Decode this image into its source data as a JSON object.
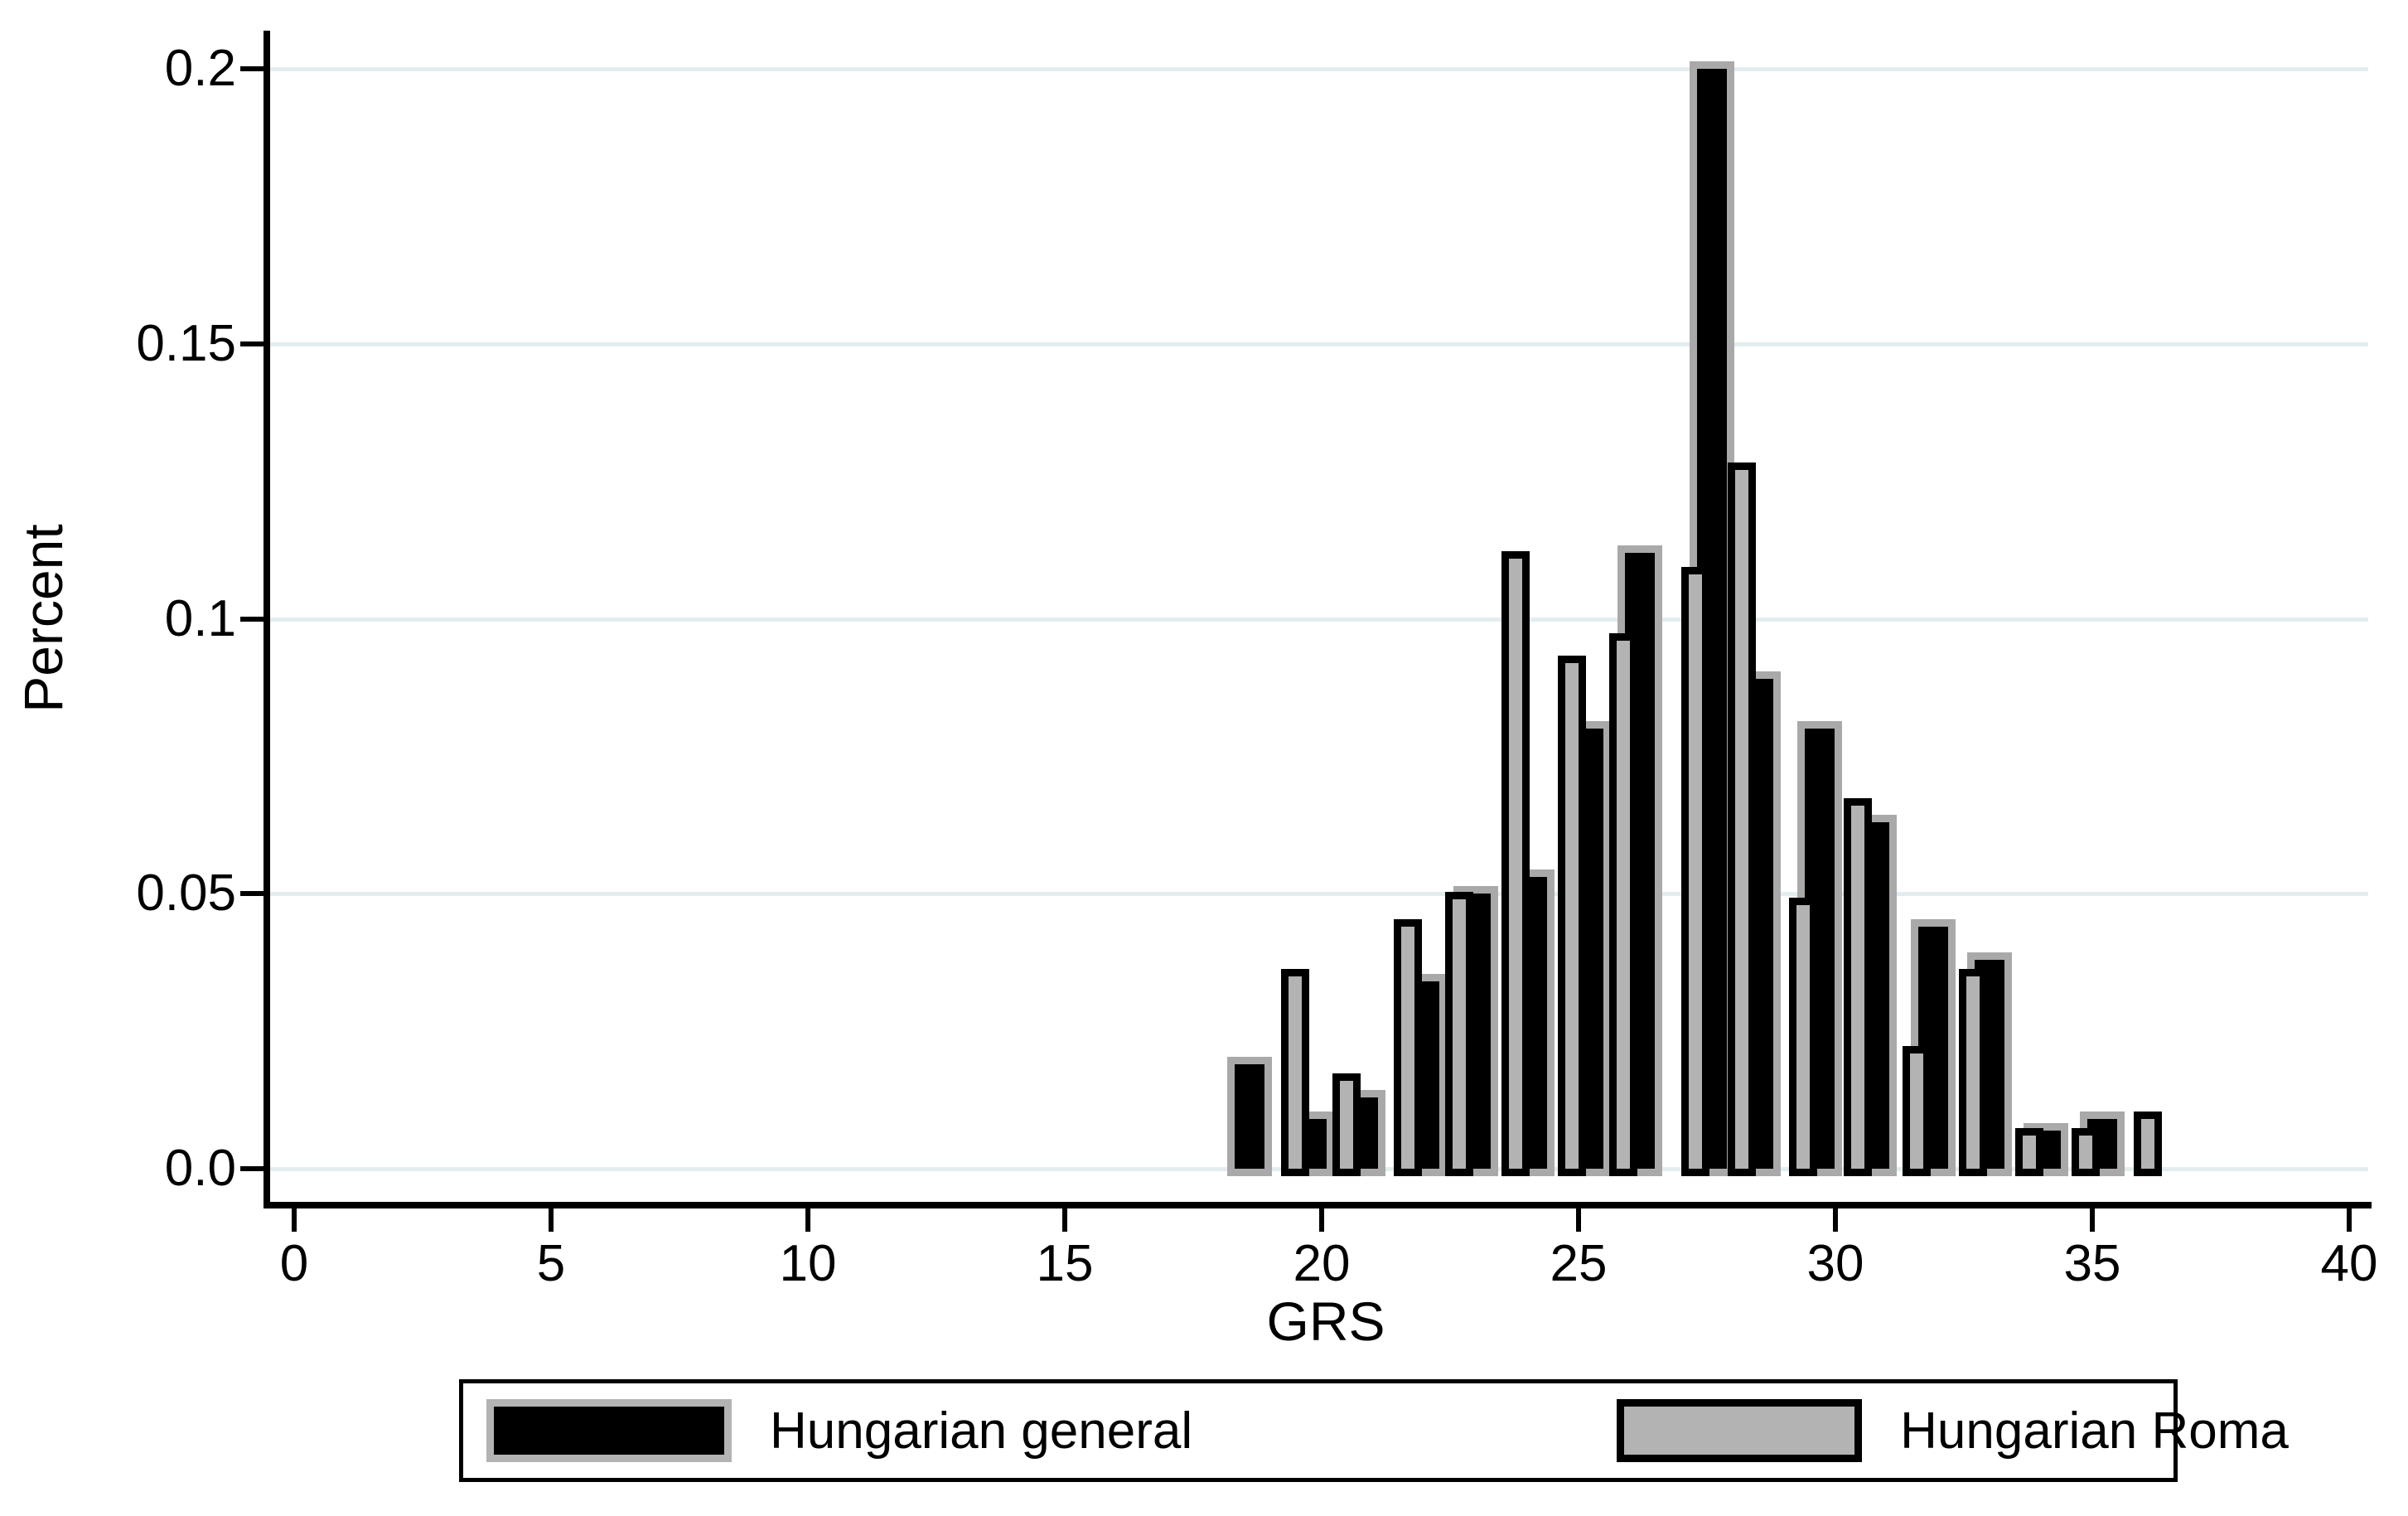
{
  "figure": {
    "background_color": "#ffffff",
    "grid_color": "#e3edef",
    "axis_color": "#000000"
  },
  "chart_data": {
    "type": "bar",
    "subtype": "overlaid-histogram",
    "title": "",
    "xlabel": "GRS",
    "ylabel": "Percent",
    "xlim": [
      -0.5,
      40.5
    ],
    "ylim": [
      0,
      0.21
    ],
    "grid": true,
    "legend_position": "bottom",
    "x_ticks": [
      0,
      5,
      10,
      15,
      20,
      25,
      30,
      35,
      40
    ],
    "y_ticks": [
      "0.0",
      "0.05",
      "0.1",
      "0.15",
      "0.2"
    ],
    "y_tick_values": [
      0,
      0.05,
      0.1,
      0.15,
      0.2
    ],
    "x": [
      18.6,
      19.8,
      20.8,
      22.0,
      23.0,
      24.1,
      25.2,
      26.2,
      27.6,
      28.5,
      29.7,
      30.75,
      31.9,
      33.0,
      34.1,
      35.2,
      36.4
    ],
    "series": [
      {
        "name": "Hungarian general",
        "fill_color": "#000000",
        "outline_color": "#a9a9a9",
        "values": [
          0.019,
          0.009,
          0.013,
          0.034,
          0.05,
          0.053,
          0.08,
          0.112,
          0.2,
          0.089,
          0.08,
          0.063,
          0.044,
          0.038,
          0.007,
          0.009,
          0
        ]
      },
      {
        "name": "Hungarian Roma",
        "fill_color": "#b3b3b3",
        "outline_color": "#000000",
        "values": [
          0,
          0.035,
          0.016,
          0.044,
          0.049,
          0.111,
          0.092,
          0.096,
          0.108,
          0.127,
          0.048,
          0.066,
          0.021,
          0.035,
          0.006,
          0.006,
          0.009
        ]
      }
    ]
  },
  "legend": {
    "entries": [
      {
        "label": "Hungarian general"
      },
      {
        "label": "Hungarian Roma"
      }
    ]
  }
}
